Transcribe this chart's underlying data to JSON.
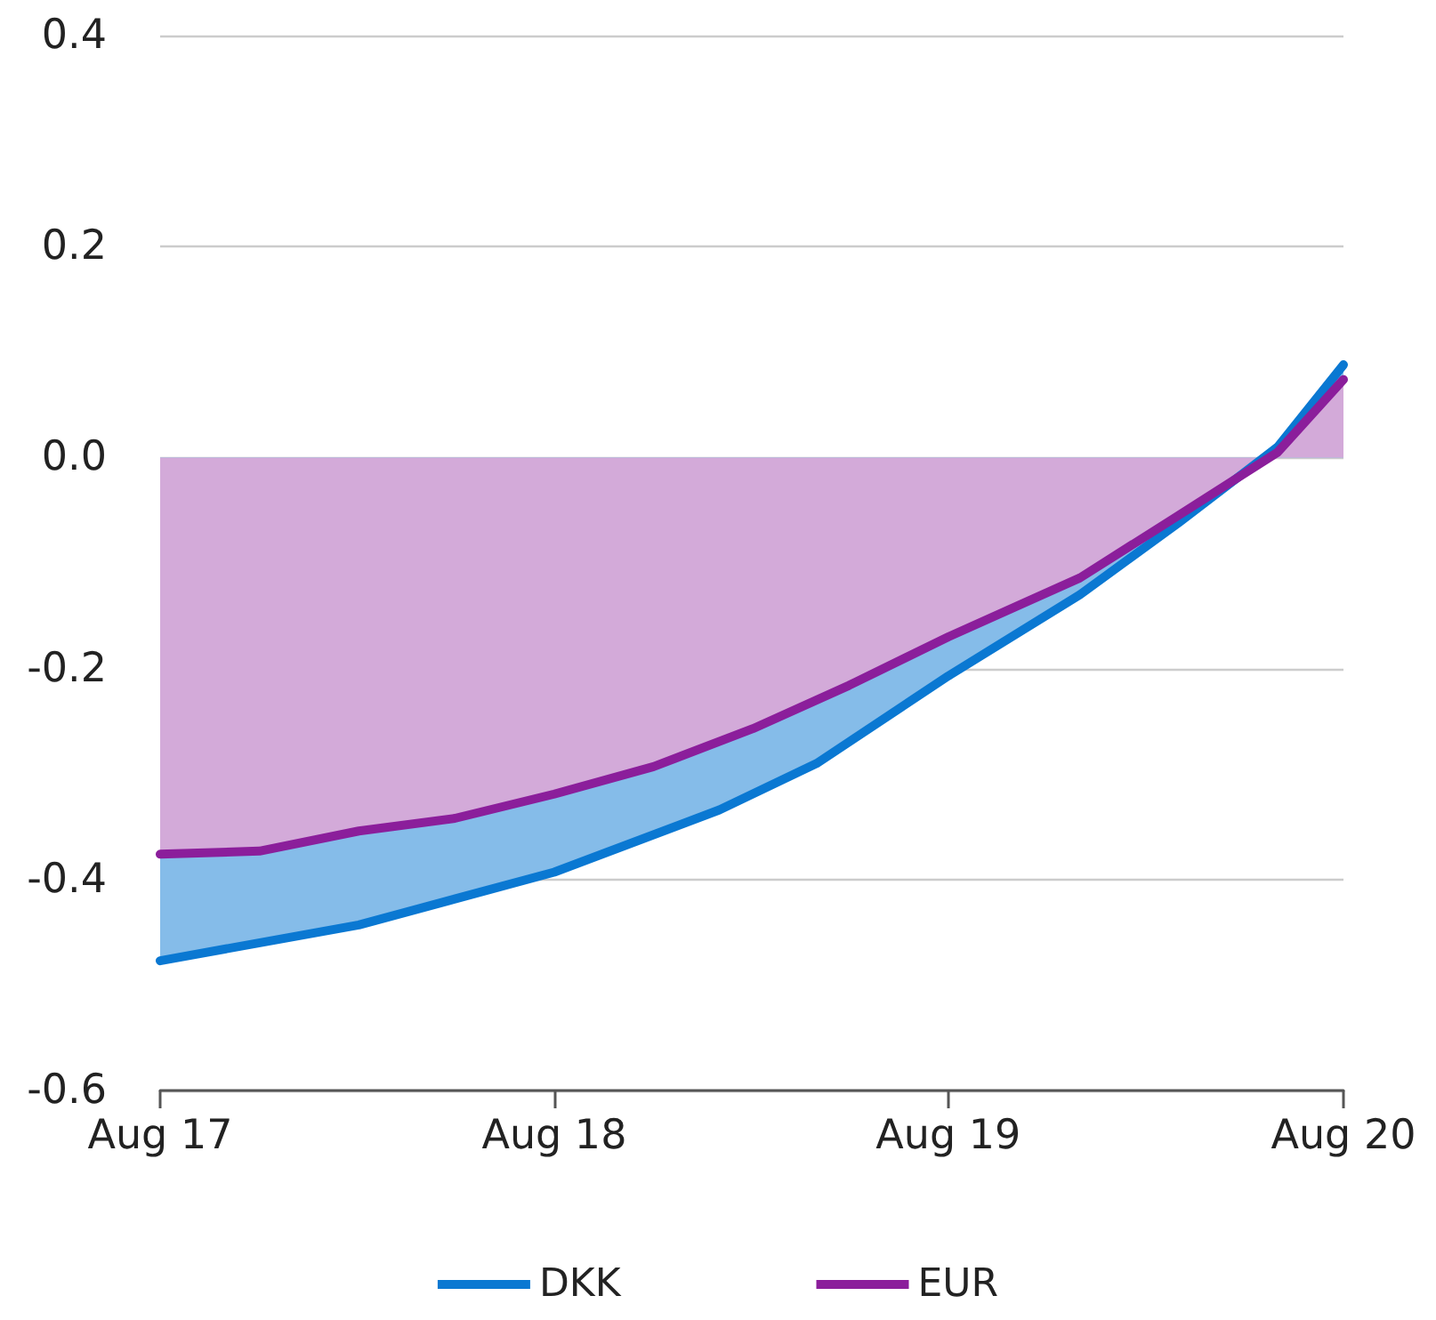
{
  "chart_data": {
    "type": "area",
    "x": [
      "2017-08",
      "2018-02",
      "2018-08",
      "2019-01",
      "2019-04",
      "2019-08",
      "2019-12",
      "2020-03",
      "2020-06",
      "2020-08"
    ],
    "series": [
      {
        "name": "DKK",
        "color": "#0a78d2",
        "values": [
          -0.477,
          -0.443,
          -0.393,
          -0.334,
          -0.29,
          -0.207,
          -0.13,
          -0.062,
          0.01,
          0.088
        ]
      },
      {
        "name": "EUR",
        "color": "#8b1e9b",
        "x": [
          "2017-08",
          "2017-11",
          "2018-02",
          "2018-05",
          "2018-08",
          "2018-11",
          "2019-02",
          "2019-05",
          "2019-08",
          "2019-12",
          "2020-03",
          "2020-06",
          "2020-08"
        ],
        "values": [
          -0.376,
          -0.373,
          -0.354,
          -0.342,
          -0.319,
          -0.293,
          -0.257,
          -0.216,
          -0.17,
          -0.114,
          -0.055,
          0.005,
          0.074
        ]
      }
    ],
    "xlim": [
      "2017-08",
      "2020-08"
    ],
    "xticks": [
      {
        "value": "2017-08",
        "label": "Aug 17"
      },
      {
        "value": "2018-08",
        "label": "Aug 18"
      },
      {
        "value": "2019-08",
        "label": "Aug 19"
      },
      {
        "value": "2020-08",
        "label": "Aug 20"
      }
    ],
    "ylim": [
      -0.6,
      0.4
    ],
    "yticks": [
      -0.6,
      -0.4,
      -0.2,
      {
        "value": 0,
        "label": "0.0"
      },
      0.2,
      0.4
    ],
    "grid": "y",
    "legend": "bottom",
    "marker": "none",
    "line_style": "solid"
  }
}
